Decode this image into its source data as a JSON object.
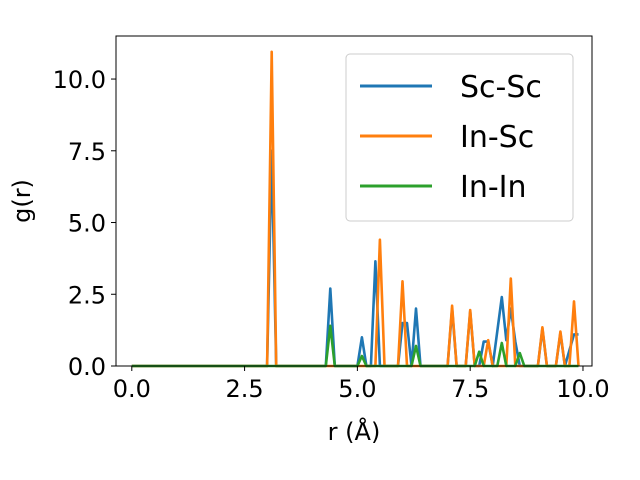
{
  "chart_data": {
    "type": "line",
    "xlabel": "r (Å)",
    "ylabel": "g(r)",
    "xlim": [
      -0.35,
      10.2
    ],
    "ylim": [
      0,
      11.5
    ],
    "xticks": [
      {
        "value": 0.0,
        "label": "0.0"
      },
      {
        "value": 2.5,
        "label": "2.5"
      },
      {
        "value": 5.0,
        "label": "5.0"
      },
      {
        "value": 7.5,
        "label": "7.5"
      },
      {
        "value": 10.0,
        "label": "10.0"
      }
    ],
    "yticks": [
      {
        "value": 0.0,
        "label": "0.0"
      },
      {
        "value": 2.5,
        "label": "2.5"
      },
      {
        "value": 5.0,
        "label": "5.0"
      },
      {
        "value": 7.5,
        "label": "7.5"
      },
      {
        "value": 10.0,
        "label": "10.0"
      }
    ],
    "grid": false,
    "legend_position": "top-right",
    "series": [
      {
        "name": "Sc-Sc",
        "color": "#1f77b4",
        "points": [
          [
            0.0,
            0
          ],
          [
            3.0,
            0
          ],
          [
            3.1,
            7.5
          ],
          [
            3.2,
            0
          ],
          [
            3.3,
            0
          ],
          [
            4.3,
            0
          ],
          [
            4.4,
            2.7
          ],
          [
            4.5,
            0
          ],
          [
            5.0,
            0
          ],
          [
            5.1,
            1.0
          ],
          [
            5.2,
            0
          ],
          [
            5.3,
            0
          ],
          [
            5.4,
            3.65
          ],
          [
            5.5,
            0
          ],
          [
            5.9,
            0
          ],
          [
            6.0,
            1.5
          ],
          [
            6.1,
            1.5
          ],
          [
            6.2,
            0
          ],
          [
            6.3,
            2.0
          ],
          [
            6.4,
            0
          ],
          [
            7.0,
            0
          ],
          [
            7.1,
            2.0
          ],
          [
            7.2,
            0
          ],
          [
            7.4,
            0
          ],
          [
            7.5,
            1.9
          ],
          [
            7.6,
            0
          ],
          [
            7.7,
            0
          ],
          [
            7.8,
            0.85
          ],
          [
            7.9,
            0.85
          ],
          [
            8.0,
            0
          ],
          [
            8.2,
            2.4
          ],
          [
            8.3,
            0.9
          ],
          [
            8.4,
            2.0
          ],
          [
            8.5,
            0.85
          ],
          [
            8.6,
            0
          ],
          [
            9.0,
            0
          ],
          [
            9.1,
            1.3
          ],
          [
            9.2,
            0
          ],
          [
            9.4,
            0
          ],
          [
            9.5,
            1.15
          ],
          [
            9.6,
            0
          ],
          [
            9.8,
            1.1
          ],
          [
            9.9,
            1.1
          ]
        ]
      },
      {
        "name": "In-Sc",
        "color": "#ff7f0e",
        "points": [
          [
            0.0,
            0
          ],
          [
            3.0,
            0
          ],
          [
            3.1,
            10.95
          ],
          [
            3.2,
            0
          ],
          [
            5.4,
            0
          ],
          [
            5.5,
            4.4
          ],
          [
            5.6,
            0
          ],
          [
            5.9,
            0
          ],
          [
            6.0,
            2.95
          ],
          [
            6.1,
            0
          ],
          [
            7.0,
            0
          ],
          [
            7.1,
            2.1
          ],
          [
            7.2,
            0
          ],
          [
            7.4,
            0
          ],
          [
            7.5,
            1.95
          ],
          [
            7.6,
            0
          ],
          [
            7.8,
            0
          ],
          [
            7.9,
            0.9
          ],
          [
            8.0,
            0
          ],
          [
            8.3,
            0
          ],
          [
            8.4,
            3.05
          ],
          [
            8.5,
            0
          ],
          [
            9.0,
            0
          ],
          [
            9.1,
            1.35
          ],
          [
            9.2,
            0
          ],
          [
            9.4,
            0
          ],
          [
            9.5,
            1.2
          ],
          [
            9.6,
            0
          ],
          [
            9.7,
            0
          ],
          [
            9.8,
            2.25
          ],
          [
            9.9,
            0
          ]
        ]
      },
      {
        "name": "In-In",
        "color": "#2ca02c",
        "points": [
          [
            0.0,
            0
          ],
          [
            4.3,
            0
          ],
          [
            4.4,
            1.4
          ],
          [
            4.5,
            0
          ],
          [
            5.0,
            0
          ],
          [
            5.1,
            0.35
          ],
          [
            5.2,
            0
          ],
          [
            6.2,
            0
          ],
          [
            6.3,
            0.7
          ],
          [
            6.4,
            0
          ],
          [
            7.6,
            0
          ],
          [
            7.7,
            0.5
          ],
          [
            7.8,
            0
          ],
          [
            8.1,
            0
          ],
          [
            8.2,
            0.8
          ],
          [
            8.3,
            0
          ],
          [
            8.5,
            0
          ],
          [
            8.6,
            0.45
          ],
          [
            8.7,
            0
          ],
          [
            9.9,
            0
          ]
        ]
      }
    ]
  }
}
